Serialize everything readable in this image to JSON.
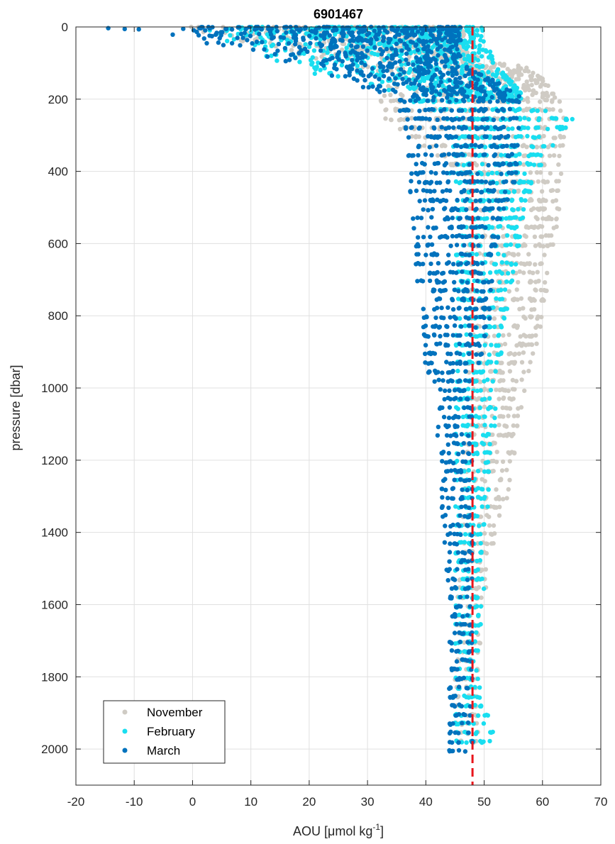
{
  "chart_data": {
    "type": "scatter",
    "title": "6901467",
    "xlabel": "AOU [μmol kg",
    "xlabel_sup": "-1",
    "xlabel_end": "]",
    "ylabel": "pressure [dbar]",
    "xlim": [
      -20,
      70
    ],
    "ylim": [
      0,
      2100
    ],
    "y_reversed": true,
    "grid": true,
    "legend_position": "bottom-left",
    "xticks": [
      "-20",
      "-10",
      "0",
      "10",
      "20",
      "30",
      "40",
      "50",
      "60",
      "70"
    ],
    "yticks": [
      "0",
      "200",
      "400",
      "600",
      "800",
      "1000",
      "1200",
      "1400",
      "1600",
      "1800",
      "2000"
    ],
    "reference_line": {
      "x": 48,
      "color": "#e8151b",
      "style": "dashed"
    },
    "series": [
      {
        "name": "November",
        "color": "#cfcbc4",
        "profile": [
          {
            "p": 0,
            "min": -4,
            "max": 46
          },
          {
            "p": 30,
            "min": 3,
            "max": 47
          },
          {
            "p": 60,
            "min": 12,
            "max": 47
          },
          {
            "p": 90,
            "min": 20,
            "max": 50
          },
          {
            "p": 110,
            "min": 25,
            "max": 57
          },
          {
            "p": 140,
            "min": 30,
            "max": 60
          },
          {
            "p": 170,
            "min": 32,
            "max": 62
          },
          {
            "p": 200,
            "min": 32,
            "max": 63
          },
          {
            "p": 260,
            "min": 33,
            "max": 64
          },
          {
            "p": 300,
            "min": 36,
            "max": 64
          },
          {
            "p": 400,
            "min": 46,
            "max": 64
          },
          {
            "p": 500,
            "min": 47,
            "max": 63
          },
          {
            "p": 600,
            "min": 47,
            "max": 62
          },
          {
            "p": 700,
            "min": 47,
            "max": 61
          },
          {
            "p": 800,
            "min": 47,
            "max": 60
          },
          {
            "p": 900,
            "min": 47,
            "max": 59
          },
          {
            "p": 1000,
            "min": 47,
            "max": 57
          },
          {
            "p": 1100,
            "min": 47,
            "max": 56
          },
          {
            "p": 1200,
            "min": 46,
            "max": 55
          },
          {
            "p": 1300,
            "min": 46,
            "max": 54
          },
          {
            "p": 1400,
            "min": 46,
            "max": 52
          },
          {
            "p": 1500,
            "min": 46,
            "max": 51
          },
          {
            "p": 1600,
            "min": 45,
            "max": 50
          },
          {
            "p": 1800,
            "min": 45,
            "max": 49
          },
          {
            "p": 2000,
            "min": 45,
            "max": 49
          }
        ]
      },
      {
        "name": "February",
        "color": "#19def0",
        "profile": [
          {
            "p": 0,
            "min": -3,
            "max": 50
          },
          {
            "p": 50,
            "min": 4,
            "max": 50
          },
          {
            "p": 100,
            "min": 14,
            "max": 53
          },
          {
            "p": 150,
            "min": 25,
            "max": 55
          },
          {
            "p": 200,
            "min": 37,
            "max": 57
          },
          {
            "p": 260,
            "min": 44,
            "max": 66
          },
          {
            "p": 300,
            "min": 44,
            "max": 63
          },
          {
            "p": 400,
            "min": 44,
            "max": 59
          },
          {
            "p": 500,
            "min": 45,
            "max": 57
          },
          {
            "p": 600,
            "min": 45,
            "max": 56
          },
          {
            "p": 700,
            "min": 45,
            "max": 55
          },
          {
            "p": 800,
            "min": 45,
            "max": 54
          },
          {
            "p": 900,
            "min": 45,
            "max": 53
          },
          {
            "p": 1000,
            "min": 45,
            "max": 52
          },
          {
            "p": 1100,
            "min": 45,
            "max": 52
          },
          {
            "p": 1200,
            "min": 45,
            "max": 51
          },
          {
            "p": 1300,
            "min": 45,
            "max": 51
          },
          {
            "p": 1400,
            "min": 45,
            "max": 50
          },
          {
            "p": 1500,
            "min": 45,
            "max": 50
          },
          {
            "p": 1600,
            "min": 45,
            "max": 50
          },
          {
            "p": 1800,
            "min": 45,
            "max": 49
          },
          {
            "p": 1980,
            "min": 45,
            "max": 52
          },
          {
            "p": 2000,
            "min": 45,
            "max": 49
          }
        ]
      },
      {
        "name": "March",
        "color": "#0072bd",
        "profile": [
          {
            "p": 0,
            "min": -17,
            "max": 46
          },
          {
            "p": 30,
            "min": -5,
            "max": 46
          },
          {
            "p": 60,
            "min": 5,
            "max": 46
          },
          {
            "p": 100,
            "min": 15,
            "max": 46
          },
          {
            "p": 150,
            "min": 22,
            "max": 52
          },
          {
            "p": 200,
            "min": 35,
            "max": 57
          },
          {
            "p": 260,
            "min": 36,
            "max": 56
          },
          {
            "p": 400,
            "min": 37,
            "max": 56
          },
          {
            "p": 600,
            "min": 38,
            "max": 52
          },
          {
            "p": 800,
            "min": 39,
            "max": 51
          },
          {
            "p": 950,
            "min": 40,
            "max": 49
          },
          {
            "p": 1000,
            "min": 42,
            "max": 48
          },
          {
            "p": 1200,
            "min": 42,
            "max": 48
          },
          {
            "p": 1400,
            "min": 43,
            "max": 48
          },
          {
            "p": 1600,
            "min": 44,
            "max": 48
          },
          {
            "p": 1800,
            "min": 44,
            "max": 48
          },
          {
            "p": 2000,
            "min": 44,
            "max": 48
          },
          {
            "p": 2010,
            "min": 44,
            "max": 48
          }
        ]
      }
    ]
  }
}
